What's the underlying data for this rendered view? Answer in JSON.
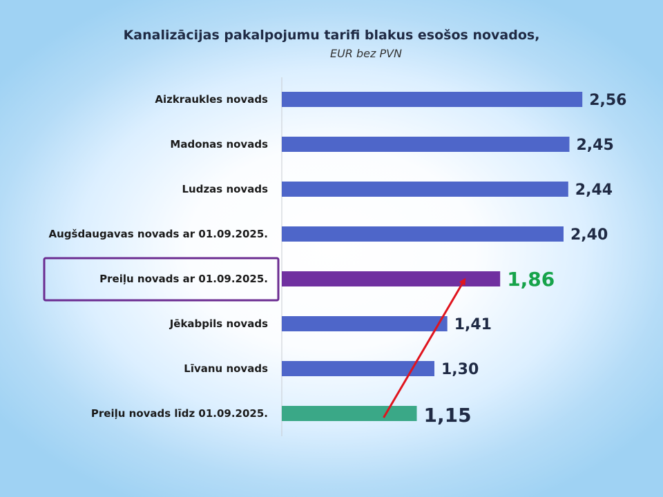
{
  "title": "Kanalizācijas pakalpojumu tarifi blakus esošos novados,",
  "subtitle": "EUR bez PVN",
  "colors": {
    "default_bar": "#4e66c9",
    "highlight_bar": "#7030a0",
    "old_bar": "#3aa887",
    "highlight_value": "#16a34a",
    "value_text": "#1f2a44",
    "highlight_box": "#6b2c91",
    "arrow": "#e0141e"
  },
  "chart_data": {
    "type": "bar",
    "orientation": "horizontal",
    "title": "Kanalizācijas pakalpojumu tarifi blakus esošos novados,",
    "subtitle": "EUR bez PVN",
    "categories": [
      "Aizkraukles novads",
      "Madonas novads",
      "Ludzas novads",
      "Augšdaugavas novads ar 01.09.2025.",
      "Preiļu novads ar 01.09.2025.",
      "Jēkabpils novads",
      "Līvanu novads",
      "Preiļu novads līdz 01.09.2025."
    ],
    "values": [
      2.56,
      2.45,
      2.44,
      2.4,
      1.86,
      1.41,
      1.3,
      1.15
    ],
    "value_labels": [
      "2,56",
      "2,45",
      "2,44",
      "2,40",
      "1,86",
      "1,41",
      "1,30",
      "1,15"
    ],
    "highlighted_category": "Preiļu novads ar 01.09.2025.",
    "previous_category": "Preiļu novads līdz 01.09.2025.",
    "arrow": {
      "from": "Preiļu novads līdz 01.09.2025.",
      "to": "Preiļu novads ar 01.09.2025."
    },
    "xlim": [
      0,
      2.6
    ],
    "grid": false,
    "legend": "none"
  }
}
